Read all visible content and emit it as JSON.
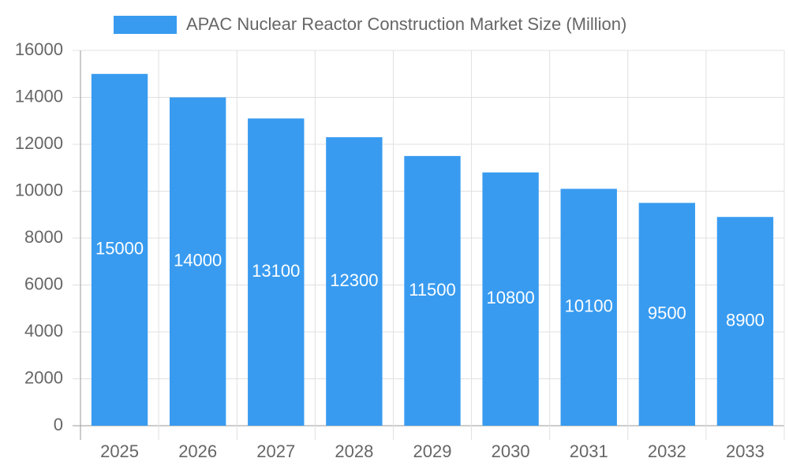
{
  "chart_data": {
    "type": "bar",
    "categories": [
      "2025",
      "2026",
      "2027",
      "2028",
      "2029",
      "2030",
      "2031",
      "2032",
      "2033"
    ],
    "series": [
      {
        "name": "APAC Nuclear Reactor Construction Market Size (Million)",
        "color": "#389bf0",
        "values": [
          15000,
          14000,
          13100,
          12300,
          11500,
          10800,
          10100,
          9500,
          8900
        ]
      }
    ],
    "ylim": [
      0,
      16000
    ],
    "yticks": [
      0,
      2000,
      4000,
      6000,
      8000,
      10000,
      12000,
      14000,
      16000
    ],
    "grid": true,
    "legend": "top",
    "data_labels": true
  }
}
